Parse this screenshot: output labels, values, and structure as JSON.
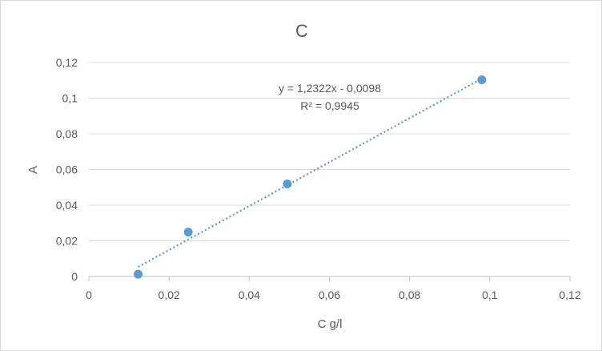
{
  "chart_data": {
    "type": "scatter",
    "title": "C",
    "xlabel": "C g/l",
    "ylabel": "A",
    "xlim": [
      0,
      0.12
    ],
    "ylim": [
      0,
      0.12
    ],
    "xticks": [
      "0",
      "0,02",
      "0,04",
      "0,06",
      "0,08",
      "0,1",
      "0,12"
    ],
    "yticks": [
      "0",
      "0,02",
      "0,04",
      "0,06",
      "0,08",
      "0,1",
      "0,12"
    ],
    "grid": "horizontal",
    "series": [
      {
        "x": [
          0.0123,
          0.0248,
          0.0495,
          0.098
        ],
        "y": [
          0.0013,
          0.0249,
          0.0519,
          0.1103
        ],
        "color": "#5b9bd5",
        "trendline": {
          "type": "linear",
          "slope": 1.2322,
          "intercept": -0.0098,
          "style": "dotted",
          "x_range": [
            0.0123,
            0.098
          ]
        }
      }
    ],
    "annotations": {
      "equation": "y = 1,2322x - 0,0098",
      "r_squared": "R² = 0,9945"
    }
  }
}
